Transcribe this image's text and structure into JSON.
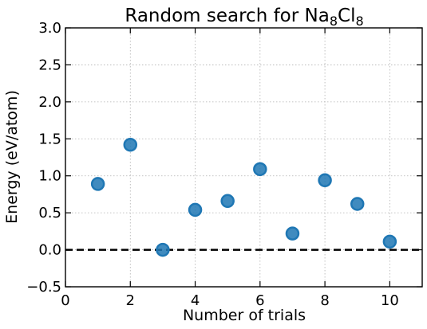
{
  "chart_data": {
    "type": "scatter",
    "title_parts": [
      "Random search for Na",
      "8",
      "Cl",
      "8"
    ],
    "xlabel": "Number of trials",
    "ylabel": "Energy (eV/atom)",
    "xlim": [
      0,
      11
    ],
    "ylim": [
      -0.5,
      3.0
    ],
    "xticks": [
      0,
      2,
      4,
      6,
      8,
      10
    ],
    "yticks": [
      -0.5,
      0.0,
      0.5,
      1.0,
      1.5,
      2.0,
      2.5,
      3.0
    ],
    "xtick_labels": [
      "0",
      "2",
      "4",
      "6",
      "8",
      "10"
    ],
    "ytick_labels": [
      "−0.5",
      "0.0",
      "0.5",
      "1.0",
      "1.5",
      "2.0",
      "2.5",
      "3.0"
    ],
    "grid": true,
    "reference_line_y": 0.0,
    "point_color": "#1f77b4",
    "points": [
      {
        "x": 1,
        "y": 0.89
      },
      {
        "x": 2,
        "y": 1.42
      },
      {
        "x": 3,
        "y": 0.0
      },
      {
        "x": 4,
        "y": 0.54
      },
      {
        "x": 5,
        "y": 0.66
      },
      {
        "x": 6,
        "y": 1.09
      },
      {
        "x": 7,
        "y": 0.22
      },
      {
        "x": 8,
        "y": 0.94
      },
      {
        "x": 9,
        "y": 0.62
      },
      {
        "x": 10,
        "y": 0.11
      }
    ]
  }
}
